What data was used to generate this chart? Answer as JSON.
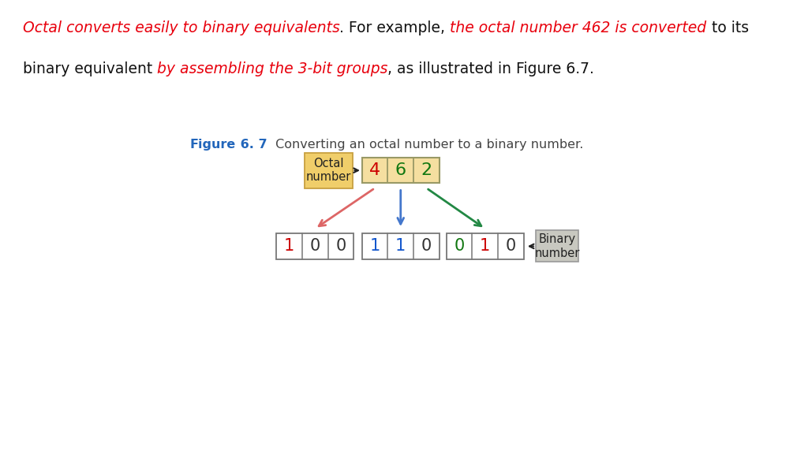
{
  "line1_segments": [
    {
      "text": "Octal converts easily to binary equivalents",
      "color": "#e8000d",
      "style": "italic",
      "weight": "normal"
    },
    {
      "text": ". For example, ",
      "color": "#111111",
      "style": "normal",
      "weight": "normal"
    },
    {
      "text": "the octal number 462 is converted",
      "color": "#e8000d",
      "style": "italic",
      "weight": "normal"
    },
    {
      "text": " to its",
      "color": "#111111",
      "style": "normal",
      "weight": "normal"
    }
  ],
  "line2_segments": [
    {
      "text": "binary equivalent ",
      "color": "#111111",
      "style": "normal",
      "weight": "normal"
    },
    {
      "text": "by assembling the 3-bit groups",
      "color": "#e8000d",
      "style": "italic",
      "weight": "normal"
    },
    {
      "text": ", as illustrated in Figure 6.7.",
      "color": "#111111",
      "style": "normal",
      "weight": "normal"
    }
  ],
  "octal_label": "Octal\nnumber",
  "octal_label_bg": "#f0ce6a",
  "octal_label_edge": "#c8a040",
  "octal_digits": [
    "4",
    "6",
    "2"
  ],
  "octal_digit_colors": [
    "#cc0000",
    "#117711",
    "#117711"
  ],
  "octal_box_bg": "#f5dfa0",
  "octal_box_edge": "#999966",
  "binary_groups": [
    [
      "1",
      "0",
      "0"
    ],
    [
      "1",
      "1",
      "0"
    ],
    [
      "0",
      "1",
      "0"
    ]
  ],
  "binary_digit_colors": [
    [
      "#cc0000",
      "#333333",
      "#333333"
    ],
    [
      "#1155cc",
      "#1155cc",
      "#333333"
    ],
    [
      "#117711",
      "#cc0000",
      "#333333"
    ]
  ],
  "binary_label": "Binary\nnumber",
  "binary_label_bg": "#c8c8c0",
  "binary_label_edge": "#999999",
  "arrow_left_color": "#dd6666",
  "arrow_center_color": "#4477cc",
  "arrow_right_color": "#228844",
  "octal_arrow_color": "#222222",
  "binary_arrow_color": "#222222",
  "figure_caption": [
    {
      "text": "Figure",
      "color": "#2266bb",
      "weight": "bold"
    },
    {
      "text": " 6. 7 ",
      "color": "#2266bb",
      "weight": "bold"
    },
    {
      "text": " Converting an octal number to a binary number.",
      "color": "#444444",
      "weight": "normal"
    }
  ],
  "text_fontsize": 13.5,
  "caption_fontsize": 11.5,
  "bg_color": "#ffffff"
}
